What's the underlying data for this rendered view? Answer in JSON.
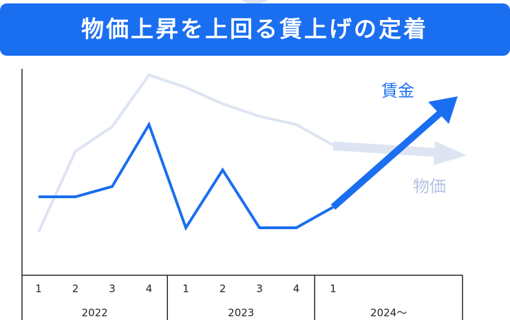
{
  "chart_data": {
    "type": "line",
    "title": "物価上昇を上回る賃上げの定着",
    "categories": [
      "1",
      "2",
      "3",
      "4",
      "1",
      "2",
      "3",
      "4",
      "1"
    ],
    "groups": [
      "2022",
      "2023",
      "2024〜"
    ],
    "ylim": [
      0,
      100
    ],
    "series": [
      {
        "name": "物価",
        "color": "#dde4f2",
        "values": [
          21,
          60,
          72,
          97,
          91,
          83,
          77,
          73,
          63
        ]
      },
      {
        "name": "賃金",
        "color": "#1a6ef0",
        "values": [
          38,
          38,
          43,
          73,
          23,
          51,
          23,
          23,
          33
        ]
      }
    ]
  }
}
